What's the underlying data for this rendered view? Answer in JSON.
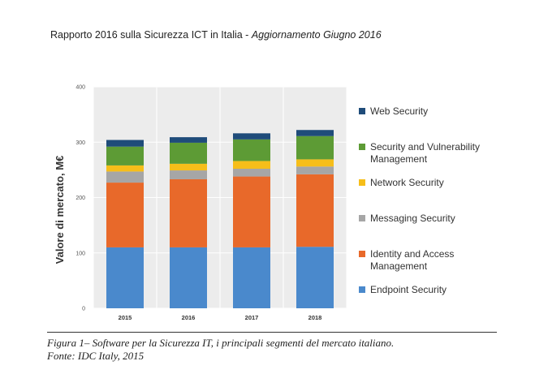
{
  "header": {
    "title": "Rapporto 2016 sulla Sicurezza ICT in Italia - ",
    "title_italic": "Aggiornamento Giugno 2016"
  },
  "chart_data": {
    "type": "bar",
    "stacked": true,
    "categories": [
      "2015",
      "2016",
      "2017",
      "2018"
    ],
    "ylabel": "Valore di mercato, M€",
    "xlabel": "",
    "ylim": [
      0,
      400
    ],
    "yticks": [
      "0",
      "100",
      "200",
      "300",
      "400"
    ],
    "grid": true,
    "legend_position": "right",
    "series": [
      {
        "name": "Endpoint Security",
        "color": "#4a89cc",
        "values": [
          110,
          110,
          110,
          111
        ]
      },
      {
        "name": "Identity and Access Management",
        "color": "#e8692a",
        "values": [
          117,
          123,
          128,
          131
        ]
      },
      {
        "name": "Messaging Security",
        "color": "#a6a6a6",
        "values": [
          20,
          16,
          14,
          14
        ]
      },
      {
        "name": "Network Security",
        "color": "#f6be1a",
        "values": [
          11,
          12,
          14,
          13
        ]
      },
      {
        "name": "Security and Vulnerability Management",
        "color": "#5d9b35",
        "values": [
          34,
          38,
          39,
          42
        ]
      },
      {
        "name": "Web Security",
        "color": "#1f4c7a",
        "values": [
          12,
          10,
          11,
          11
        ]
      }
    ]
  },
  "legend": [
    {
      "label": "Web Security",
      "color": "#1f4c7a"
    },
    {
      "label": "Security and Vulnerability Management",
      "color": "#5d9b35"
    },
    {
      "label": "Network Security",
      "color": "#f6be1a"
    },
    {
      "label": "Messaging Security",
      "color": "#a6a6a6"
    },
    {
      "label": "Identity and Access Management",
      "color": "#e8692a"
    },
    {
      "label": "Endpoint Security",
      "color": "#4a89cc"
    }
  ],
  "caption": {
    "line1": "Figura 1– Software per la Sicurezza IT, i principali segmenti del mercato italiano.",
    "line2": "Fonte: IDC Italy, 2015"
  }
}
